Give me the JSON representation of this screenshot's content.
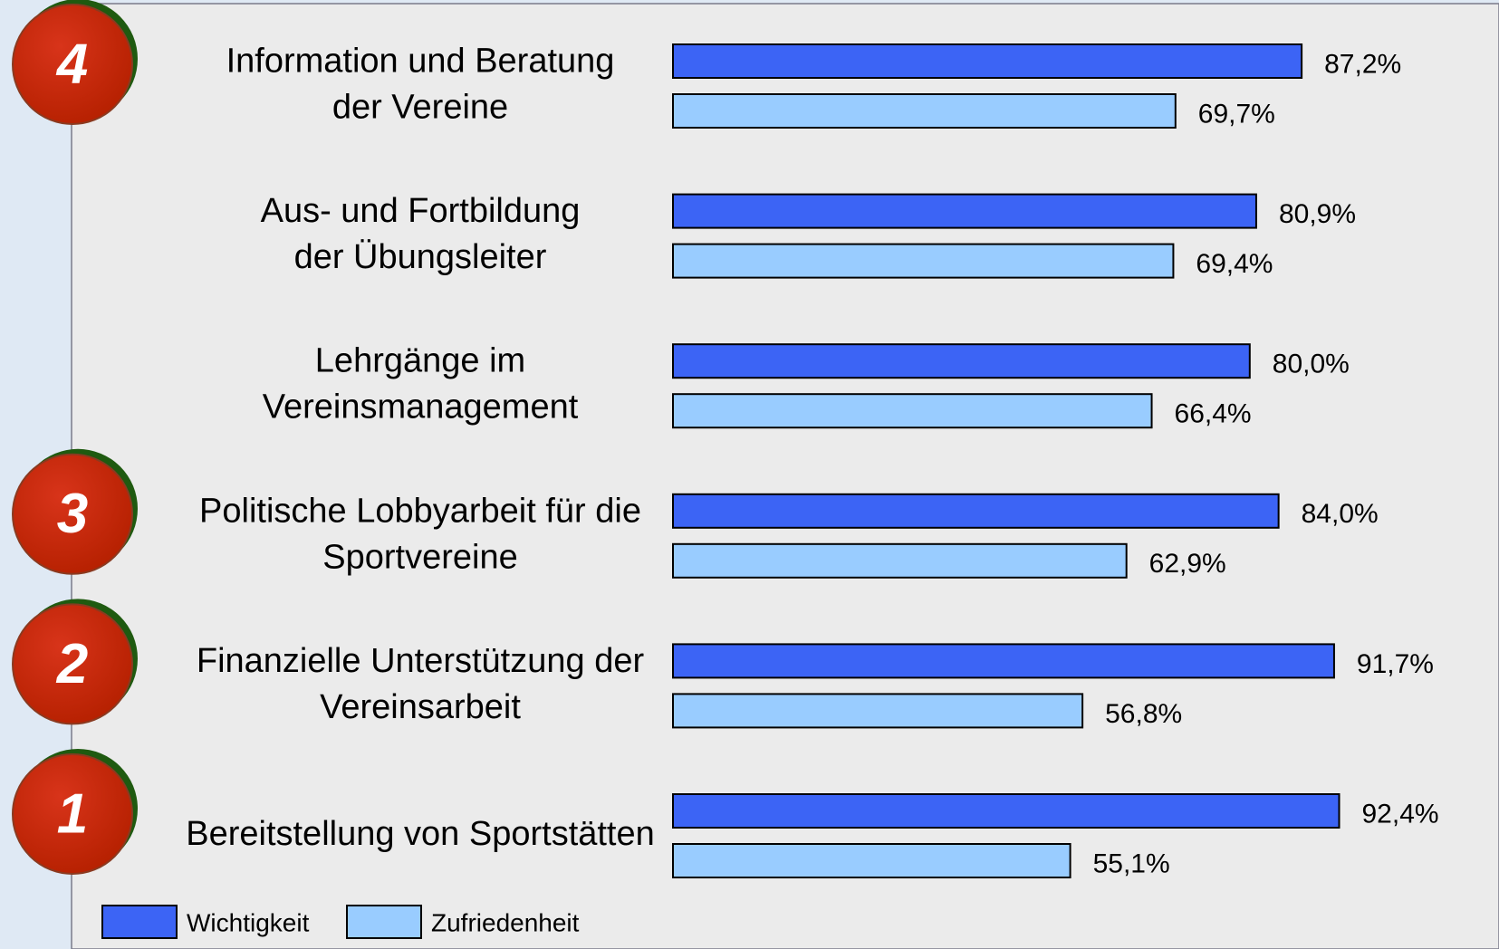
{
  "chart_data": {
    "type": "bar",
    "categories": [
      [
        "Information und Beratung",
        "der Vereine"
      ],
      [
        "Aus- und Fortbildung",
        "der Übungsleiter"
      ],
      [
        "Lehrgänge im",
        "Vereinsmanagement"
      ],
      [
        "Politische Lobbyarbeit für die",
        "Sportvereine"
      ],
      [
        "Finanzielle Unterstützung der",
        "Vereinsarbeit"
      ],
      [
        "Bereitstellung von Sportstätten"
      ]
    ],
    "ranks": [
      4,
      null,
      null,
      3,
      2,
      1
    ],
    "series": [
      {
        "name": "Wichtigkeit",
        "color": "#3c64f5",
        "values": [
          87.2,
          80.9,
          80.0,
          84.0,
          91.7,
          92.4
        ],
        "value_labels": [
          "87,2%",
          "80,9%",
          "80,0%",
          "84,0%",
          "91,7%",
          "92,4%"
        ]
      },
      {
        "name": "Zufriedenheit",
        "color": "#99ccff",
        "values": [
          69.7,
          69.4,
          66.4,
          62.9,
          56.8,
          55.1
        ],
        "value_labels": [
          "69,7%",
          "69,4%",
          "66,4%",
          "62,9%",
          "56,8%",
          "55,1%"
        ]
      }
    ]
  }
}
